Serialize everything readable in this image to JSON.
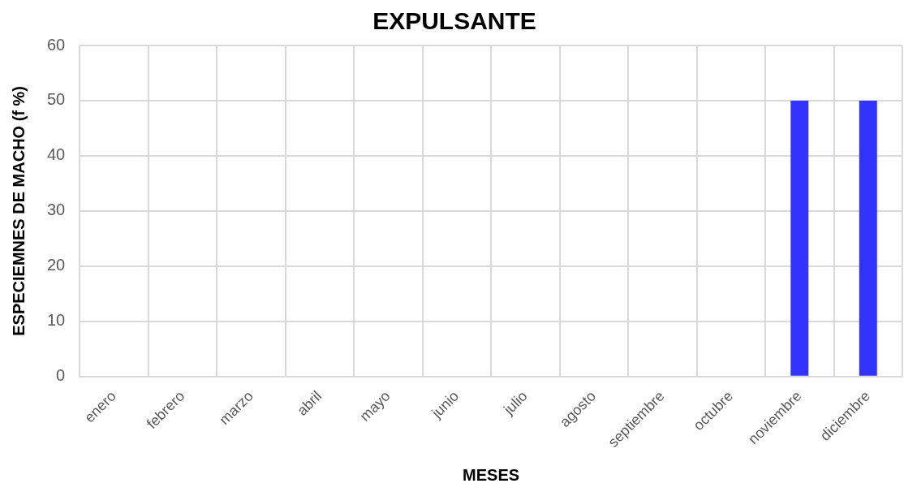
{
  "chart_data": {
    "type": "bar",
    "title": "EXPULSANTE",
    "xlabel": "MESES",
    "ylabel": "ESPECIEMNES DE MACHO (f %)",
    "categories": [
      "enero",
      "febrero",
      "marzo",
      "abril",
      "mayo",
      "junio",
      "julio",
      "agosto",
      "septiembre",
      "octubre",
      "noviembre",
      "diciembre"
    ],
    "values": [
      0,
      0,
      0,
      0,
      0,
      0,
      0,
      0,
      0,
      0,
      50,
      50
    ],
    "color": "#3333ff",
    "ylim": [
      0,
      60
    ],
    "yticks": [
      0,
      10,
      20,
      30,
      40,
      50,
      60
    ],
    "grid": true,
    "legend": false
  }
}
